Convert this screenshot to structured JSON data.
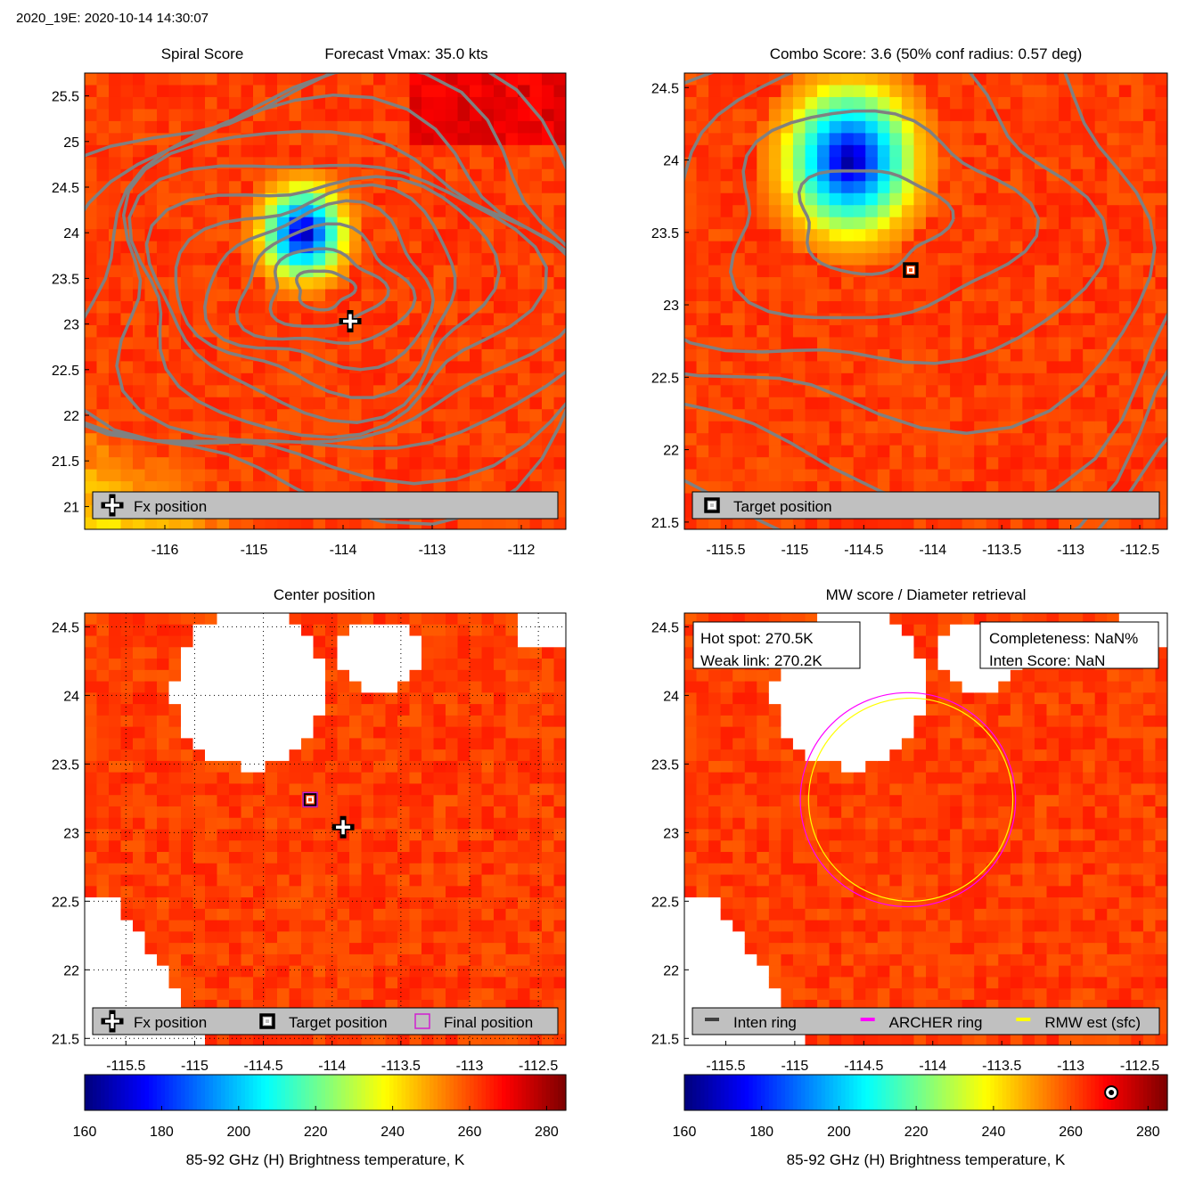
{
  "figure_title": "2020_19E: 2020-10-14 14:30:07",
  "colors": {
    "axes_border": "#000000",
    "contour": "#808080",
    "legend_bg": "#c0c0c0",
    "archer_ring": "#ff00ff",
    "rmw_ring": "#ffff00",
    "inten_ring": "#404040",
    "final_position": "#d020d0"
  },
  "colormap": "jet",
  "chart_data": [
    {
      "id": "spiral",
      "type": "heatmap",
      "title_left": "Spiral Score",
      "title_right": "Forecast Vmax: 35.0 kts",
      "xlim": [
        -116.9,
        -111.5
      ],
      "ylim": [
        20.75,
        25.75
      ],
      "xticks": [
        "-116",
        "-115",
        "-114",
        "-113",
        "-112"
      ],
      "yticks": [
        "21",
        "21.5",
        "22",
        "22.5",
        "23",
        "23.5",
        "24",
        "24.5",
        "25",
        "25.5"
      ],
      "grid": false,
      "contours": true,
      "cold_core": {
        "lon": -114.45,
        "lat": 24.0,
        "tb_min": 160
      },
      "markers": [
        {
          "type": "fx-cross",
          "lon": -113.92,
          "lat": 23.03
        }
      ],
      "legend_placement": "bottom",
      "legend": [
        {
          "symbol": "plus-icon",
          "label": "Fx position"
        }
      ]
    },
    {
      "id": "combo",
      "type": "heatmap",
      "title": "Combo Score: 3.6  (50% conf radius: 0.57 deg)",
      "xlim": [
        -115.8,
        -112.3
      ],
      "ylim": [
        21.45,
        24.6
      ],
      "xticks": [
        "-115.5",
        "-115",
        "-114.5",
        "-114",
        "-113.5",
        "-113",
        "-112.5"
      ],
      "yticks": [
        "21.5",
        "22",
        "22.5",
        "23",
        "23.5",
        "24",
        "24.5"
      ],
      "grid": false,
      "contours": true,
      "cold_core": {
        "lon": -114.6,
        "lat": 24.0,
        "tb_min": 160
      },
      "markers": [
        {
          "type": "target-square",
          "lon": -114.16,
          "lat": 23.24
        }
      ],
      "legend_placement": "bottom",
      "legend": [
        {
          "symbol": "square-marker-icon",
          "label": "Target position"
        }
      ]
    },
    {
      "id": "center",
      "type": "heatmap",
      "title": "Center position",
      "xlim": [
        -115.8,
        -112.3
      ],
      "ylim": [
        21.45,
        24.6
      ],
      "xticks": [
        "-115.5",
        "-115",
        "-114.5",
        "-114",
        "-113.5",
        "-113",
        "-112.5"
      ],
      "yticks": [
        "21.5",
        "22",
        "22.5",
        "23",
        "23.5",
        "24",
        "24.5"
      ],
      "grid": true,
      "contours": false,
      "markers": [
        {
          "type": "target-square",
          "lon": -114.16,
          "lat": 23.24
        },
        {
          "type": "final-square",
          "lon": -114.16,
          "lat": 23.24
        },
        {
          "type": "fx-cross",
          "lon": -113.92,
          "lat": 23.04
        }
      ],
      "legend_placement": "bottom",
      "legend": [
        {
          "symbol": "plus-icon",
          "label": "Fx position"
        },
        {
          "symbol": "square-marker-icon",
          "label": "Target position"
        },
        {
          "symbol": "magenta-square-icon",
          "label": "Final position"
        }
      ]
    },
    {
      "id": "mw",
      "type": "heatmap",
      "title": "MW score / Diameter retrieval",
      "xlim": [
        -115.8,
        -112.3
      ],
      "ylim": [
        21.45,
        24.6
      ],
      "xticks": [
        "-115.5",
        "-115",
        "-114.5",
        "-114",
        "-113.5",
        "-113",
        "-112.5"
      ],
      "yticks": [
        "21.5",
        "22",
        "22.5",
        "23",
        "23.5",
        "24",
        "24.5"
      ],
      "grid": false,
      "contours": false,
      "info_left": [
        "Hot spot: 270.5K",
        "Weak link: 270.2K"
      ],
      "info_right": [
        "Completeness: NaN%",
        "Inten Score: NaN"
      ],
      "rings": [
        {
          "name": "ARCHER ring",
          "lon": -114.18,
          "lat": 23.24,
          "radius_deg": 0.78
        },
        {
          "name": "RMW est (sfc)",
          "lon": -114.16,
          "lat": 23.24,
          "radius_deg": 0.74
        }
      ],
      "legend_placement": "bottom",
      "legend": [
        {
          "symbol": "dark-line-icon",
          "label": "Inten ring"
        },
        {
          "symbol": "magenta-line-icon",
          "label": "ARCHER ring"
        },
        {
          "symbol": "yellow-line-icon",
          "label": "RMW est (sfc)"
        }
      ]
    },
    {
      "id": "colorbar-left",
      "type": "colorbar",
      "range": [
        160,
        285
      ],
      "ticks": [
        "160",
        "180",
        "200",
        "220",
        "240",
        "260",
        "280"
      ],
      "xlabel": "85-92 GHz (H) Brightness temperature, K"
    },
    {
      "id": "colorbar-right",
      "type": "colorbar",
      "range": [
        160,
        285
      ],
      "ticks": [
        "160",
        "180",
        "200",
        "220",
        "240",
        "260",
        "280"
      ],
      "xlabel": "85-92 GHz (H) Brightness temperature, K",
      "marker": {
        "type": "score-dot",
        "value": 270.5
      }
    }
  ]
}
